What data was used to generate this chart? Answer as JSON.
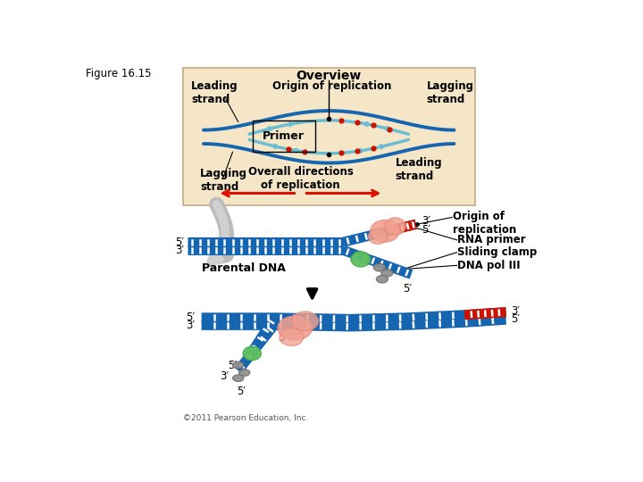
{
  "figure_label": "Figure 16.15",
  "copyright": "©2011 Pearson Education, Inc.",
  "overview": {
    "bg_color": "#f5e6c8",
    "title": "Overview",
    "leading_top": "Leading\nstrand",
    "origin_top": "Origin of replication",
    "lagging_top": "Lagging\nstrand",
    "primer_label": "Primer",
    "lagging_bot": "Lagging\nstrand",
    "leading_bot": "Leading\nstrand",
    "overall": "Overall directions\nof replication"
  },
  "colors": {
    "dna_blue": "#1565b0",
    "dna_blue2": "#2070c0",
    "rna_red": "#cc1100",
    "salmon": "#f0a090",
    "salmon2": "#e8887a",
    "green1": "#4aaa4a",
    "green2": "#60c060",
    "gray1": "#909090",
    "gray2": "#707070",
    "light_blue": "#6bbdd4",
    "arrow_red": "#dd1100",
    "bg_gray": "#cccccc",
    "white": "#ffffff",
    "black": "#000000"
  }
}
